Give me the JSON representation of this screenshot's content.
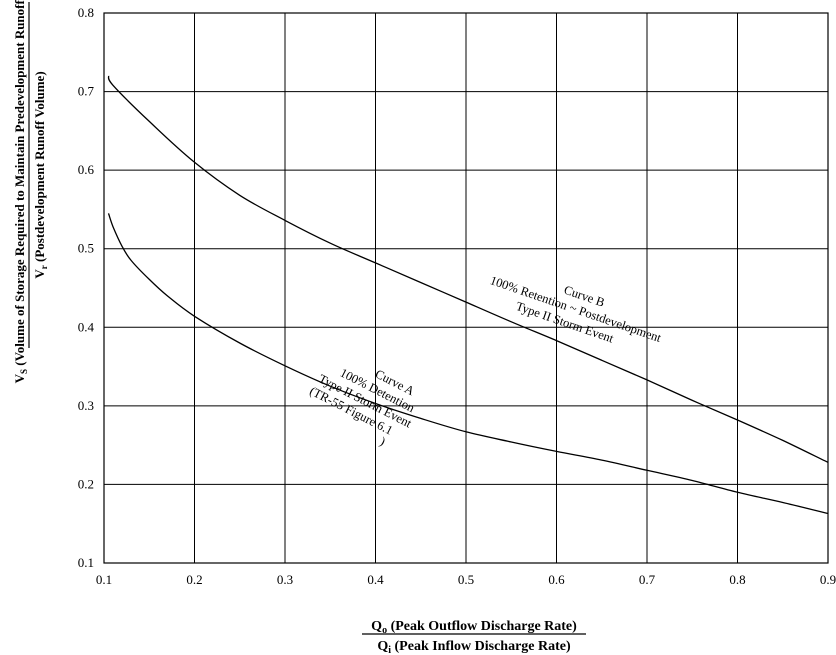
{
  "chart_data": {
    "type": "line",
    "xlabel": {
      "numerator_var": "Q",
      "numerator_sub": "o",
      "numerator_text": " (Peak Outflow Discharge Rate)",
      "denominator_var": "Q",
      "denominator_sub": "i",
      "denominator_text": " (Peak Inflow Discharge Rate)"
    },
    "ylabel": {
      "numerator_var": "V",
      "numerator_sub": "S",
      "numerator_text": " (Volume of Storage Required to Maintain Predevelopment Runoff Rate)",
      "denominator_var": "V",
      "denominator_sub": "r",
      "denominator_text": " (Postdevelopment Runoff Volume)"
    },
    "xlim": [
      0.1,
      0.9
    ],
    "ylim": [
      0.1,
      0.8
    ],
    "x_ticks": [
      "0.1",
      "0.2",
      "0.3",
      "0.4",
      "0.5",
      "0.6",
      "0.7",
      "0.8",
      "0.9"
    ],
    "y_ticks": [
      "0.1",
      "0.2",
      "0.3",
      "0.4",
      "0.5",
      "0.6",
      "0.7",
      "0.8"
    ],
    "grid": true,
    "series": [
      {
        "name": "Curve A",
        "x": [
          0.105,
          0.11,
          0.12,
          0.13,
          0.15,
          0.17,
          0.2,
          0.25,
          0.3,
          0.35,
          0.4,
          0.45,
          0.5,
          0.55,
          0.6,
          0.65,
          0.7,
          0.75,
          0.8,
          0.85,
          0.9
        ],
        "y": [
          0.545,
          0.528,
          0.503,
          0.485,
          0.461,
          0.44,
          0.414,
          0.38,
          0.351,
          0.325,
          0.303,
          0.284,
          0.267,
          0.254,
          0.242,
          0.231,
          0.218,
          0.205,
          0.19,
          0.177,
          0.163
        ]
      },
      {
        "name": "Curve B",
        "x": [
          0.105,
          0.11,
          0.15,
          0.2,
          0.25,
          0.3,
          0.35,
          0.4,
          0.45,
          0.5,
          0.55,
          0.6,
          0.65,
          0.7,
          0.75,
          0.8,
          0.85,
          0.9
        ],
        "y": [
          0.72,
          0.708,
          0.662,
          0.61,
          0.568,
          0.536,
          0.507,
          0.482,
          0.457,
          0.432,
          0.407,
          0.383,
          0.358,
          0.333,
          0.307,
          0.282,
          0.256,
          0.228
        ]
      }
    ],
    "annotations": {
      "curve_a": [
        "Curve A",
        "100% Detention",
        "Type II Storm Event",
        "(TR-55 Figure 6.1",
        ")"
      ],
      "curve_b": [
        "Curve B",
        "100% Retention  ~ Postdevelopment",
        "Type II Storm Event"
      ]
    }
  }
}
